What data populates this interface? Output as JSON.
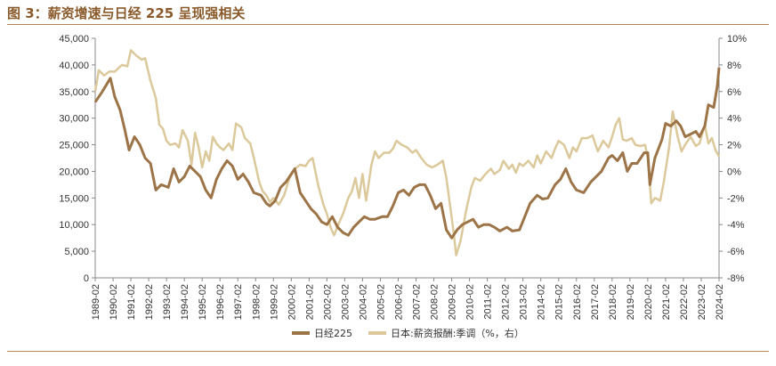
{
  "figure": {
    "title": "图 3：薪资增速与日经 225 呈现强相关"
  },
  "colors": {
    "nikkei": "#9c7447",
    "wage": "#dcc99b",
    "accent": "#8a5a2b",
    "rule": "#b58a5a"
  },
  "chart_data": {
    "type": "line",
    "title": "",
    "xlabel": "",
    "ylabel_left": "",
    "ylabel_right": "",
    "left_axis": {
      "min": 0,
      "max": 45000,
      "ticks": [
        "0",
        "5,000",
        "10,000",
        "15,000",
        "20,000",
        "25,000",
        "30,000",
        "35,000",
        "40,000",
        "45,000"
      ]
    },
    "right_axis": {
      "min": -8,
      "max": 10,
      "ticks": [
        "-8%",
        "-6%",
        "-4%",
        "-2%",
        "0%",
        "2%",
        "4%",
        "6%",
        "8%",
        "10%"
      ]
    },
    "x_labels": [
      "1989-02",
      "1990-02",
      "1991-02",
      "1992-02",
      "1993-02",
      "1994-02",
      "1995-02",
      "1996-02",
      "1997-02",
      "1998-02",
      "1999-02",
      "2000-02",
      "2001-02",
      "2002-02",
      "2003-02",
      "2004-02",
      "2005-02",
      "2006-02",
      "2007-02",
      "2008-02",
      "2009-02",
      "2010-02",
      "2011-02",
      "2012-02",
      "2013-02",
      "2014-02",
      "2015-02",
      "2016-02",
      "2017-02",
      "2018-02",
      "2019-02",
      "2020-02",
      "2021-02",
      "2022-02",
      "2023-02",
      "2024-02"
    ],
    "grid": false,
    "legend_position": "bottom",
    "series": [
      {
        "name": "日经225",
        "axis": "left",
        "points": [
          [
            1989.1,
            33000
          ],
          [
            1989.5,
            35000
          ],
          [
            1989.95,
            37500
          ],
          [
            1990.2,
            34000
          ],
          [
            1990.5,
            31500
          ],
          [
            1990.75,
            28000
          ],
          [
            1991.0,
            24000
          ],
          [
            1991.3,
            26500
          ],
          [
            1991.6,
            25000
          ],
          [
            1991.9,
            22500
          ],
          [
            1992.2,
            21500
          ],
          [
            1992.5,
            16500
          ],
          [
            1992.8,
            17500
          ],
          [
            1993.2,
            17000
          ],
          [
            1993.5,
            20500
          ],
          [
            1993.8,
            18000
          ],
          [
            1994.1,
            19000
          ],
          [
            1994.4,
            21000
          ],
          [
            1994.7,
            20000
          ],
          [
            1995.0,
            19000
          ],
          [
            1995.3,
            16500
          ],
          [
            1995.6,
            15000
          ],
          [
            1995.9,
            18500
          ],
          [
            1996.2,
            20500
          ],
          [
            1996.5,
            22000
          ],
          [
            1996.8,
            21000
          ],
          [
            1997.1,
            18500
          ],
          [
            1997.4,
            19500
          ],
          [
            1997.7,
            18000
          ],
          [
            1998.0,
            16000
          ],
          [
            1998.4,
            15500
          ],
          [
            1998.7,
            14000
          ],
          [
            1998.9,
            13500
          ],
          [
            1999.2,
            14500
          ],
          [
            1999.5,
            17000
          ],
          [
            1999.8,
            18000
          ],
          [
            2000.1,
            19500
          ],
          [
            2000.3,
            20500
          ],
          [
            2000.6,
            16000
          ],
          [
            2000.9,
            14500
          ],
          [
            2001.2,
            13000
          ],
          [
            2001.5,
            12000
          ],
          [
            2001.8,
            10500
          ],
          [
            2002.1,
            10000
          ],
          [
            2002.4,
            11500
          ],
          [
            2002.7,
            9500
          ],
          [
            2003.0,
            8500
          ],
          [
            2003.3,
            8000
          ],
          [
            2003.6,
            9500
          ],
          [
            2003.9,
            10500
          ],
          [
            2004.2,
            11500
          ],
          [
            2004.5,
            11000
          ],
          [
            2004.8,
            11000
          ],
          [
            2005.2,
            11500
          ],
          [
            2005.5,
            11500
          ],
          [
            2005.8,
            13500
          ],
          [
            2006.1,
            16000
          ],
          [
            2006.4,
            16500
          ],
          [
            2006.7,
            15500
          ],
          [
            2007.0,
            17000
          ],
          [
            2007.3,
            17500
          ],
          [
            2007.6,
            17500
          ],
          [
            2007.9,
            15500
          ],
          [
            2008.2,
            13000
          ],
          [
            2008.5,
            14000
          ],
          [
            2008.8,
            9000
          ],
          [
            2009.1,
            7500
          ],
          [
            2009.4,
            9000
          ],
          [
            2009.7,
            10000
          ],
          [
            2010.0,
            10500
          ],
          [
            2010.3,
            11000
          ],
          [
            2010.6,
            9500
          ],
          [
            2010.9,
            10000
          ],
          [
            2011.2,
            10000
          ],
          [
            2011.5,
            9500
          ],
          [
            2011.8,
            8800
          ],
          [
            2012.2,
            9500
          ],
          [
            2012.5,
            8800
          ],
          [
            2012.9,
            9000
          ],
          [
            2013.2,
            11500
          ],
          [
            2013.5,
            14000
          ],
          [
            2013.9,
            15500
          ],
          [
            2014.2,
            14800
          ],
          [
            2014.5,
            15000
          ],
          [
            2014.9,
            17500
          ],
          [
            2015.2,
            18500
          ],
          [
            2015.5,
            20500
          ],
          [
            2015.8,
            18000
          ],
          [
            2016.1,
            16500
          ],
          [
            2016.5,
            16000
          ],
          [
            2016.9,
            18000
          ],
          [
            2017.2,
            19000
          ],
          [
            2017.5,
            20000
          ],
          [
            2017.9,
            22500
          ],
          [
            2018.1,
            23000
          ],
          [
            2018.4,
            22000
          ],
          [
            2018.7,
            23500
          ],
          [
            2018.95,
            20000
          ],
          [
            2019.2,
            21500
          ],
          [
            2019.5,
            21500
          ],
          [
            2019.9,
            23500
          ],
          [
            2020.1,
            23500
          ],
          [
            2020.22,
            17500
          ],
          [
            2020.5,
            22500
          ],
          [
            2020.9,
            26000
          ],
          [
            2021.1,
            29000
          ],
          [
            2021.4,
            28500
          ],
          [
            2021.7,
            29500
          ],
          [
            2021.95,
            28500
          ],
          [
            2022.2,
            26500
          ],
          [
            2022.5,
            27000
          ],
          [
            2022.8,
            27500
          ],
          [
            2023.0,
            26500
          ],
          [
            2023.3,
            28500
          ],
          [
            2023.5,
            32500
          ],
          [
            2023.8,
            32000
          ],
          [
            2024.0,
            36000
          ],
          [
            2024.1,
            39500
          ]
        ]
      },
      {
        "name": "日本:薪资报酬:季调（%，右）",
        "axis": "right",
        "points": [
          [
            1989.1,
            6.0
          ],
          [
            1989.3,
            7.6
          ],
          [
            1989.6,
            7.2
          ],
          [
            1989.9,
            7.5
          ],
          [
            1990.2,
            7.5
          ],
          [
            1990.6,
            8.0
          ],
          [
            1990.9,
            7.9
          ],
          [
            1991.1,
            9.1
          ],
          [
            1991.4,
            8.7
          ],
          [
            1991.7,
            8.4
          ],
          [
            1991.9,
            8.5
          ],
          [
            1992.2,
            6.8
          ],
          [
            1992.5,
            5.5
          ],
          [
            1992.7,
            3.5
          ],
          [
            1992.9,
            3.2
          ],
          [
            1993.1,
            2.3
          ],
          [
            1993.3,
            2.0
          ],
          [
            1993.6,
            2.1
          ],
          [
            1993.8,
            1.8
          ],
          [
            1994.0,
            3.1
          ],
          [
            1994.3,
            2.3
          ],
          [
            1994.5,
            0.5
          ],
          [
            1994.7,
            2.9
          ],
          [
            1994.9,
            1.8
          ],
          [
            1995.1,
            0.3
          ],
          [
            1995.3,
            1.5
          ],
          [
            1995.5,
            0.8
          ],
          [
            1995.7,
            2.6
          ],
          [
            1995.9,
            2.1
          ],
          [
            1996.1,
            1.8
          ],
          [
            1996.3,
            1.6
          ],
          [
            1996.6,
            2.1
          ],
          [
            1996.8,
            1.6
          ],
          [
            1997.0,
            3.6
          ],
          [
            1997.3,
            3.3
          ],
          [
            1997.5,
            2.5
          ],
          [
            1997.8,
            2.1
          ],
          [
            1998.0,
            1.0
          ],
          [
            1998.3,
            -0.8
          ],
          [
            1998.5,
            -1.5
          ],
          [
            1998.7,
            -1.8
          ],
          [
            1998.9,
            -2.3
          ],
          [
            1999.1,
            -2.0
          ],
          [
            1999.4,
            -2.5
          ],
          [
            1999.7,
            -1.8
          ],
          [
            2000.0,
            -0.5
          ],
          [
            2000.3,
            0.2
          ],
          [
            2000.6,
            0.5
          ],
          [
            2000.9,
            0.4
          ],
          [
            2001.1,
            0.8
          ],
          [
            2001.3,
            1.0
          ],
          [
            2001.6,
            -1.0
          ],
          [
            2001.9,
            -2.5
          ],
          [
            2002.1,
            -3.2
          ],
          [
            2002.3,
            -4.2
          ],
          [
            2002.5,
            -4.8
          ],
          [
            2002.8,
            -3.8
          ],
          [
            2003.0,
            -3.2
          ],
          [
            2003.3,
            -2.0
          ],
          [
            2003.5,
            -1.5
          ],
          [
            2003.7,
            -0.5
          ],
          [
            2003.9,
            -2.0
          ],
          [
            2004.1,
            -0.2
          ],
          [
            2004.3,
            -2.2
          ],
          [
            2004.6,
            0.5
          ],
          [
            2004.8,
            1.5
          ],
          [
            2005.0,
            1.0
          ],
          [
            2005.3,
            1.4
          ],
          [
            2005.6,
            1.4
          ],
          [
            2005.8,
            1.7
          ],
          [
            2006.0,
            2.3
          ],
          [
            2006.3,
            2.0
          ],
          [
            2006.6,
            1.8
          ],
          [
            2006.9,
            1.4
          ],
          [
            2007.1,
            1.6
          ],
          [
            2007.4,
            1.0
          ],
          [
            2007.7,
            0.5
          ],
          [
            2008.0,
            0.3
          ],
          [
            2008.3,
            0.5
          ],
          [
            2008.6,
            0.8
          ],
          [
            2008.8,
            -0.5
          ],
          [
            2009.0,
            -2.5
          ],
          [
            2009.2,
            -4.5
          ],
          [
            2009.35,
            -6.3
          ],
          [
            2009.6,
            -5.2
          ],
          [
            2009.9,
            -3.0
          ],
          [
            2010.2,
            -1.2
          ],
          [
            2010.4,
            -0.5
          ],
          [
            2010.7,
            -0.7
          ],
          [
            2011.0,
            -0.2
          ],
          [
            2011.3,
            0.2
          ],
          [
            2011.5,
            -0.2
          ],
          [
            2011.8,
            0.1
          ],
          [
            2012.0,
            0.8
          ],
          [
            2012.3,
            0.2
          ],
          [
            2012.5,
            0.5
          ],
          [
            2012.7,
            -0.1
          ],
          [
            2012.9,
            0.6
          ],
          [
            2013.1,
            0.4
          ],
          [
            2013.4,
            0.8
          ],
          [
            2013.7,
            0.3
          ],
          [
            2013.9,
            1.2
          ],
          [
            2014.1,
            0.6
          ],
          [
            2014.4,
            1.5
          ],
          [
            2014.7,
            1.0
          ],
          [
            2014.9,
            1.7
          ],
          [
            2015.1,
            2.3
          ],
          [
            2015.4,
            2.0
          ],
          [
            2015.7,
            1.0
          ],
          [
            2015.9,
            1.8
          ],
          [
            2016.1,
            1.5
          ],
          [
            2016.4,
            2.5
          ],
          [
            2016.7,
            2.5
          ],
          [
            2017.0,
            2.7
          ],
          [
            2017.3,
            1.5
          ],
          [
            2017.6,
            2.3
          ],
          [
            2017.9,
            1.8
          ],
          [
            2018.1,
            2.6
          ],
          [
            2018.3,
            3.5
          ],
          [
            2018.5,
            4.0
          ],
          [
            2018.7,
            2.4
          ],
          [
            2018.9,
            2.3
          ],
          [
            2019.2,
            2.5
          ],
          [
            2019.4,
            2.0
          ],
          [
            2019.7,
            1.9
          ],
          [
            2019.95,
            2.0
          ],
          [
            2020.1,
            1.0
          ],
          [
            2020.3,
            -2.4
          ],
          [
            2020.5,
            -2.0
          ],
          [
            2020.8,
            -2.2
          ],
          [
            2021.0,
            -0.8
          ],
          [
            2021.3,
            1.8
          ],
          [
            2021.5,
            4.5
          ],
          [
            2021.8,
            2.5
          ],
          [
            2022.0,
            1.5
          ],
          [
            2022.2,
            2.0
          ],
          [
            2022.5,
            2.6
          ],
          [
            2022.8,
            1.9
          ],
          [
            2023.0,
            2.1
          ],
          [
            2023.3,
            3.5
          ],
          [
            2023.5,
            2.1
          ],
          [
            2023.7,
            2.5
          ],
          [
            2023.9,
            1.6
          ],
          [
            2024.1,
            1.1
          ]
        ]
      }
    ]
  }
}
